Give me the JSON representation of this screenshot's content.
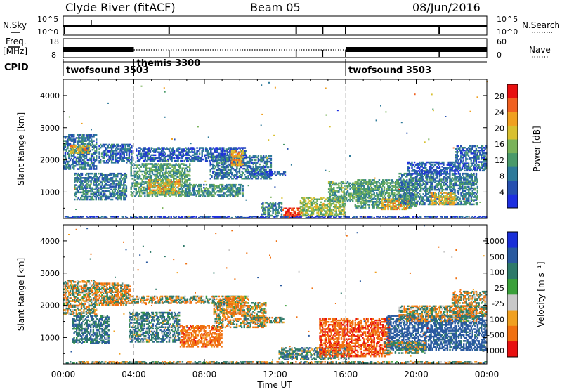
{
  "header": {
    "station": "Clyde River (fitACF)",
    "beam": "Beam 05",
    "date": "08/Jun/2016"
  },
  "top_panels": {
    "nsky_label": "N.Sky",
    "nsearch_label": "N.Search",
    "nsky_ticks": [
      "10^5",
      "10^0"
    ],
    "nsearch_ticks": [
      "10^5",
      "10^0"
    ],
    "freq_label": "Freq.",
    "freq_unit": "[MHz]",
    "freq_ticks": [
      "18",
      "8"
    ],
    "nave_label": "Nave",
    "nave_ticks": [
      "60",
      "0"
    ],
    "cpid_label": "CPID",
    "cpid_segments": [
      {
        "name": "twofsound 3503",
        "start_hour": 0,
        "end_hour": 4
      },
      {
        "name": "themis 3300",
        "start_hour": 4,
        "end_hour": 16
      },
      {
        "name": "twofsound 3503",
        "start_hour": 16,
        "end_hour": 24
      }
    ],
    "nsky_dips_hours": [
      6,
      13.2,
      14.7,
      16,
      21.3
    ],
    "freq_high_segments_hours": [
      [
        0,
        4
      ],
      [
        16,
        24
      ]
    ]
  },
  "chart_data": [
    {
      "type": "heatmap",
      "quantity": "Power",
      "xlabel": "Time UT",
      "ylabel": "Slant Range [km]",
      "xlim": [
        0,
        24
      ],
      "ylim": [
        180,
        4500
      ],
      "x_ticks": [
        "00:00",
        "04:00",
        "08:00",
        "12:00",
        "16:00",
        "20:00",
        "00:00"
      ],
      "y_ticks": [
        1000,
        2000,
        3000,
        4000
      ],
      "colorbar": {
        "label": "Power [dB]",
        "ticks": [
          4,
          8,
          12,
          16,
          20,
          24,
          28
        ],
        "range": [
          0,
          31
        ],
        "colors": [
          "#1e2fe0",
          "#2650b0",
          "#2e7a9a",
          "#4a9a6a",
          "#7ab35a",
          "#d8c030",
          "#f0a020",
          "#f06020",
          "#e81010"
        ]
      },
      "cpid_change_hours": [
        4,
        16
      ],
      "echo_regions": [
        {
          "t0": 0.0,
          "t1": 1.9,
          "r0": 1700,
          "r1": 2800,
          "level": 8
        },
        {
          "t0": 0.4,
          "t1": 1.5,
          "r0": 2200,
          "r1": 2450,
          "level": 20
        },
        {
          "t0": 0.6,
          "t1": 3.6,
          "r0": 750,
          "r1": 1600,
          "level": 9
        },
        {
          "t0": 2.0,
          "t1": 3.9,
          "r0": 1900,
          "r1": 2500,
          "level": 7
        },
        {
          "t0": 3.8,
          "t1": 7.2,
          "r0": 850,
          "r1": 1900,
          "level": 12
        },
        {
          "t0": 4.8,
          "t1": 6.6,
          "r0": 950,
          "r1": 1400,
          "level": 20
        },
        {
          "t0": 4.1,
          "t1": 10.4,
          "r0": 1950,
          "r1": 2400,
          "level": 6
        },
        {
          "t0": 7.0,
          "t1": 10.2,
          "r0": 850,
          "r1": 1250,
          "level": 11
        },
        {
          "t0": 8.3,
          "t1": 11.8,
          "r0": 1400,
          "r1": 2150,
          "level": 8
        },
        {
          "t0": 9.5,
          "t1": 10.2,
          "r0": 1800,
          "r1": 2300,
          "level": 22
        },
        {
          "t0": 10.5,
          "t1": 12.6,
          "r0": 1500,
          "r1": 1650,
          "level": 5
        },
        {
          "t0": 11.2,
          "t1": 12.4,
          "r0": 250,
          "r1": 700,
          "level": 10
        },
        {
          "t0": 12.4,
          "t1": 13.6,
          "r0": 190,
          "r1": 520,
          "level": 29
        },
        {
          "t0": 13.4,
          "t1": 16.0,
          "r0": 250,
          "r1": 850,
          "level": 16
        },
        {
          "t0": 15.0,
          "t1": 17.5,
          "r0": 700,
          "r1": 1350,
          "level": 13
        },
        {
          "t0": 16.5,
          "t1": 20.0,
          "r0": 500,
          "r1": 1400,
          "level": 12
        },
        {
          "t0": 18.0,
          "t1": 19.6,
          "r0": 450,
          "r1": 800,
          "level": 22
        },
        {
          "t0": 19.0,
          "t1": 23.5,
          "r0": 600,
          "r1": 1600,
          "level": 9
        },
        {
          "t0": 19.5,
          "t1": 22.5,
          "r0": 1550,
          "r1": 1950,
          "level": 5
        },
        {
          "t0": 22.2,
          "t1": 24.0,
          "r0": 1650,
          "r1": 2450,
          "level": 7
        },
        {
          "t0": 20.8,
          "t1": 22.2,
          "r0": 600,
          "r1": 1000,
          "level": 20
        },
        {
          "t0": 0.0,
          "t1": 24.0,
          "r0": 180,
          "r1": 260,
          "level": 4
        }
      ]
    },
    {
      "type": "heatmap",
      "quantity": "Velocity",
      "xlabel": "Time UT",
      "ylabel": "Slant Range [km]",
      "xlim": [
        0,
        24
      ],
      "ylim": [
        180,
        4500
      ],
      "x_ticks": [
        "00:00",
        "04:00",
        "08:00",
        "12:00",
        "16:00",
        "20:00",
        "00:00"
      ],
      "y_ticks": [
        1000,
        2000,
        3000,
        4000
      ],
      "colorbar": {
        "label": "Velocity [m s⁻¹]",
        "ticks": [
          "1000",
          "500",
          "100",
          "25",
          "-25",
          "-100",
          "-500",
          "-1000"
        ],
        "colors": [
          "#1a2fd8",
          "#2a5aa0",
          "#2e7a6a",
          "#3aa03a",
          "#c8c8c8",
          "#f0a020",
          "#f07010",
          "#e81010"
        ]
      },
      "cpid_change_hours": [
        4,
        16
      ],
      "echo_regions": [
        {
          "t0": 0.0,
          "t1": 1.9,
          "r0": 1700,
          "r1": 2800,
          "vel": 0
        },
        {
          "t0": 0.5,
          "t1": 2.6,
          "r0": 800,
          "r1": 1700,
          "vel": 250
        },
        {
          "t0": 1.8,
          "t1": 3.8,
          "r0": 2000,
          "r1": 2700,
          "vel": -80
        },
        {
          "t0": 2.2,
          "t1": 10.5,
          "r0": 2050,
          "r1": 2300,
          "vel": 0
        },
        {
          "t0": 3.7,
          "t1": 6.6,
          "r0": 850,
          "r1": 1800,
          "vel": 200
        },
        {
          "t0": 6.6,
          "t1": 9.0,
          "r0": 700,
          "r1": 1400,
          "vel": -300
        },
        {
          "t0": 8.5,
          "t1": 11.5,
          "r0": 1300,
          "r1": 2100,
          "vel": 0
        },
        {
          "t0": 9.2,
          "t1": 10.3,
          "r0": 1700,
          "r1": 2300,
          "vel": -200
        },
        {
          "t0": 10.6,
          "t1": 12.5,
          "r0": 1450,
          "r1": 1650,
          "vel": 0
        },
        {
          "t0": 12.2,
          "t1": 16.2,
          "r0": 300,
          "r1": 700,
          "vel": 150
        },
        {
          "t0": 14.5,
          "t1": 18.5,
          "r0": 400,
          "r1": 1600,
          "vel": -400
        },
        {
          "t0": 18.3,
          "t1": 24.0,
          "r0": 600,
          "r1": 1700,
          "vel": 500
        },
        {
          "t0": 18.2,
          "t1": 20.5,
          "r0": 500,
          "r1": 900,
          "vel": 80
        },
        {
          "t0": 19.0,
          "t1": 23.5,
          "r0": 1500,
          "r1": 2000,
          "vel": 0
        },
        {
          "t0": 22.0,
          "t1": 24.0,
          "r0": 1650,
          "r1": 2450,
          "vel": 0
        },
        {
          "t0": 0.0,
          "t1": 24.0,
          "r0": 180,
          "r1": 260,
          "vel": 60
        }
      ]
    }
  ]
}
